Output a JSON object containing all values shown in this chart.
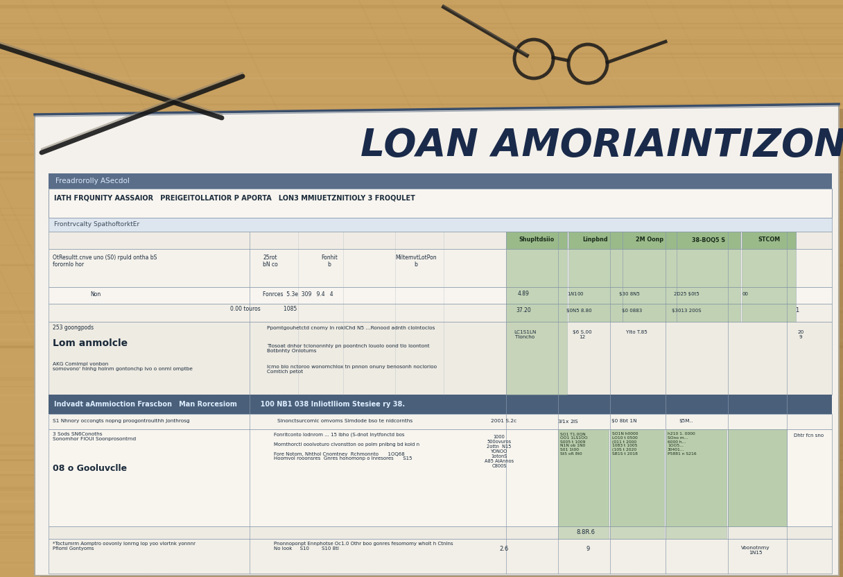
{
  "title": "LOAN AMORIAINTIZON",
  "background_wood_color": "#c8a060",
  "wood_dark": "#a07838",
  "wood_light": "#d8b878",
  "document_bg": "#f4f1ec",
  "document_border": "#c8c0b0",
  "header_bar_color": "#5a6e8a",
  "section_header_bg": "#4a5f7a",
  "green_cell_color": "#9aba8a",
  "title_color": "#1a2a4a",
  "table_line_color": "#8899aa",
  "text_color_dark": "#1a2a3a",
  "text_color_mid": "#3a4a5a",
  "text_color_light": "#5a6a7a",
  "faq_header": "Freadrorolly ASecdol",
  "subtitle_row1": "IATH FRQUNITY AASSAIOR   PREIGEITOLLATIOR P APORTA   LON3 MMIUETZNITIOLY 3 FROQULET",
  "subtitle_row2": "Frontrvcalty SpathoftorktEr",
  "col_headers": [
    "Shupltdsiio",
    "Linpbnd",
    "2M Oonp",
    "38-BOQ5 S",
    "STCOM"
  ],
  "section_divider": "Indvadt aAmmioction Frascbon   Man Rorcesiom          100 NB1 038 Inliotlliom Stesiee ry 38.",
  "bottom_right_cell": "8.8R.6"
}
